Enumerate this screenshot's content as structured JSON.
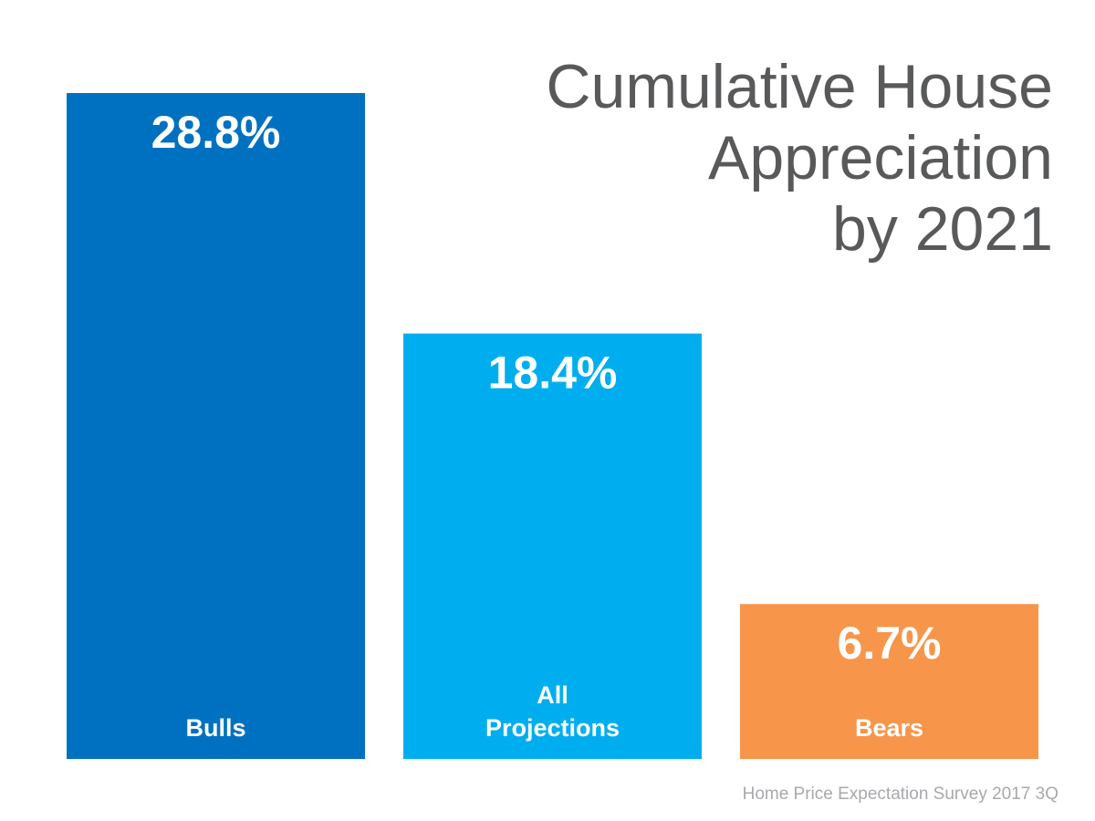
{
  "title_lines": [
    "Cumulative House",
    "Appreciation",
    "by 2021"
  ],
  "source": "Home Price Expectation Survey 2017 3Q",
  "chart_data": {
    "type": "bar",
    "title": "Cumulative House Appreciation by 2021",
    "categories": [
      "Bulls",
      "All Projections",
      "Bears"
    ],
    "category_label_lines": [
      [
        "Bulls"
      ],
      [
        "All",
        "Projections"
      ],
      [
        "Bears"
      ]
    ],
    "values": [
      28.8,
      18.4,
      6.7
    ],
    "value_labels": [
      "28.8%",
      "18.4%",
      "6.7%"
    ],
    "colors": [
      "#0071c1",
      "#00aeef",
      "#f7964a"
    ],
    "xlabel": "",
    "ylabel": "",
    "ylim": [
      0,
      28.8
    ],
    "grid": false,
    "legend": "none"
  }
}
